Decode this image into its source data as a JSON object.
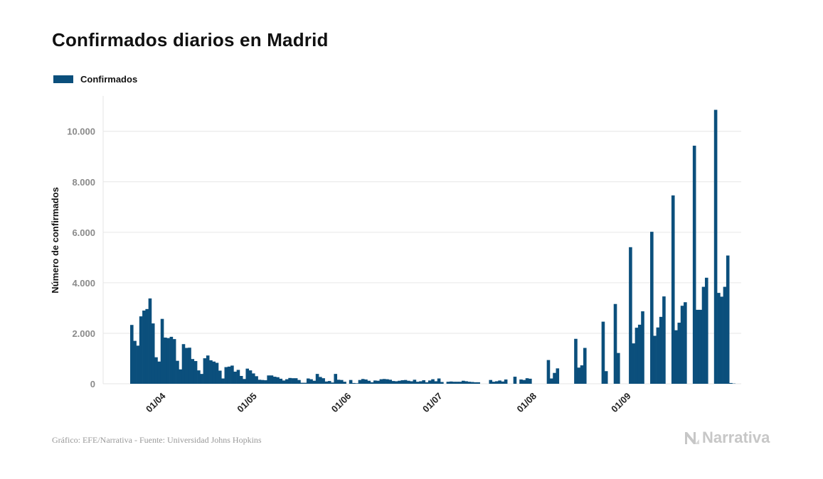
{
  "title": "Confirmados diarios en Madrid",
  "legend": {
    "label": "Confirmados",
    "color": "#0b4f7c"
  },
  "footer": {
    "source": "Gráfico: EFE/Narrativa - Fuente: Universidad Johns Hopkins"
  },
  "brand": {
    "name": "Narrativa",
    "icon": "narrativa-logo-icon"
  },
  "colors": {
    "bar": "#0b4f7c",
    "grid": "#e6e6e6",
    "tick": "#8a8a8a",
    "axis_title": "#111111"
  },
  "chart_data": {
    "type": "bar",
    "title": "Confirmados diarios en Madrid",
    "xlabel": "",
    "ylabel": "Número de confirmados",
    "ylim": [
      0,
      11400
    ],
    "grid": true,
    "legend_position": "top-left",
    "y_ticks": [
      0,
      2000,
      4000,
      6000,
      8000,
      10000
    ],
    "y_tick_labels": [
      "0",
      "2.000",
      "4.000",
      "6.000",
      "8.000",
      "10.000"
    ],
    "x_tick_labels": [
      {
        "label": "01/04",
        "index": 8
      },
      {
        "label": "01/05",
        "index": 38
      },
      {
        "label": "01/06",
        "index": 69
      },
      {
        "label": "01/07",
        "index": 99
      },
      {
        "label": "01/08",
        "index": 130
      },
      {
        "label": "01/09",
        "index": 161
      }
    ],
    "series": [
      {
        "name": "Confirmados",
        "values": [
          2330,
          1700,
          1510,
          2670,
          2900,
          2960,
          3380,
          2390,
          1050,
          880,
          2570,
          1830,
          1810,
          1860,
          1770,
          910,
          570,
          1570,
          1420,
          1430,
          980,
          900,
          530,
          390,
          1010,
          1120,
          930,
          880,
          830,
          520,
          210,
          660,
          680,
          720,
          480,
          550,
          310,
          190,
          600,
          530,
          410,
          300,
          160,
          150,
          140,
          330,
          330,
          280,
          260,
          200,
          130,
          180,
          230,
          220,
          220,
          150,
          40,
          40,
          210,
          180,
          120,
          390,
          270,
          220,
          90,
          110,
          50,
          390,
          160,
          150,
          80,
          0,
          150,
          30,
          20,
          150,
          190,
          170,
          120,
          60,
          130,
          120,
          180,
          190,
          180,
          160,
          110,
          100,
          120,
          140,
          150,
          120,
          100,
          160,
          80,
          100,
          140,
          60,
          130,
          180,
          100,
          210,
          70,
          0,
          80,
          90,
          80,
          80,
          80,
          120,
          100,
          80,
          70,
          60,
          60,
          0,
          0,
          0,
          150,
          80,
          100,
          130,
          90,
          170,
          0,
          0,
          280,
          0,
          170,
          150,
          220,
          200,
          0,
          0,
          0,
          0,
          0,
          940,
          210,
          430,
          610,
          0,
          0,
          0,
          0,
          0,
          1780,
          640,
          730,
          1420,
          0,
          0,
          0,
          0,
          0,
          2460,
          500,
          0,
          0,
          3160,
          1220,
          0,
          0,
          0,
          5410,
          1600,
          2220,
          2340,
          2870,
          0,
          0,
          6020,
          1900,
          2230,
          2650,
          3460,
          0,
          0,
          7460,
          2120,
          2420,
          3090,
          3230,
          0,
          0,
          9430,
          2930,
          2930,
          3840,
          4200,
          0,
          0,
          10850,
          3600,
          3450,
          3840,
          5080,
          30,
          10,
          0
        ]
      }
    ]
  }
}
